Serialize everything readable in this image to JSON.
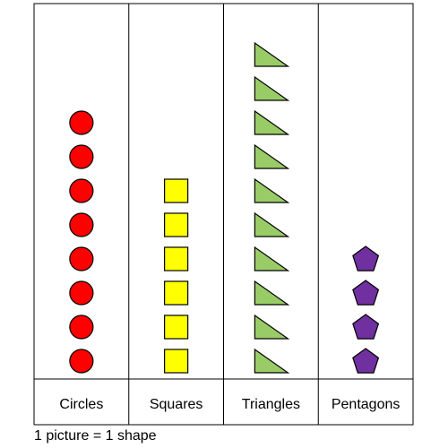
{
  "chart_data": {
    "type": "pictograph",
    "categories": [
      "Circles",
      "Squares",
      "Triangles",
      "Pentagons"
    ],
    "values": [
      8,
      6,
      10,
      4
    ],
    "icons": [
      "circle",
      "square",
      "right-triangle",
      "pentagon"
    ],
    "colors": [
      "#ff0000",
      "#ffff00",
      "#99cc66",
      "#7030a0"
    ],
    "key": "1 picture = 1 shape"
  }
}
